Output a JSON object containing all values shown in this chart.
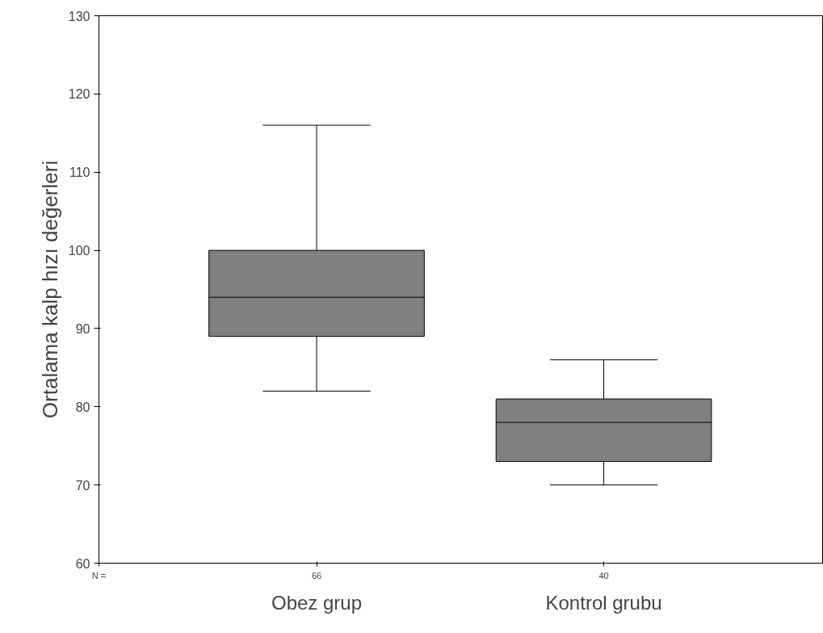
{
  "chart_data": {
    "type": "box",
    "ylabel": "Ortalama kalp hızı değerleri",
    "categories": [
      "Obez grup",
      "Kontrol grubu"
    ],
    "boxes": [
      {
        "low": 82,
        "q1": 89,
        "median": 94,
        "q3": 100,
        "high": 116
      },
      {
        "low": 70,
        "q1": 73,
        "median": 78,
        "q3": 81,
        "high": 86
      }
    ],
    "color": "#808080",
    "ylim": [
      60,
      130
    ],
    "yticks": [
      60,
      70,
      80,
      90,
      100,
      110,
      120,
      130
    ],
    "grid": false,
    "annotations": [
      "N =",
      "66",
      "40"
    ]
  }
}
